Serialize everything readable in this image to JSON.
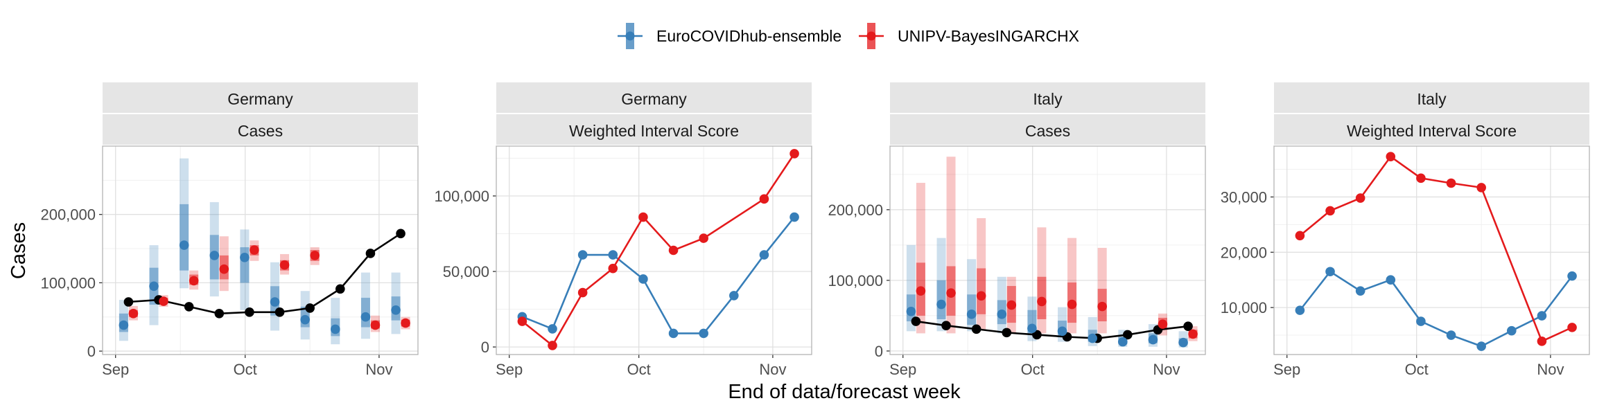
{
  "colors": {
    "ensemble": "#377eb8",
    "bayes": "#e41a1c",
    "observed": "#000000"
  },
  "legend": {
    "items": [
      {
        "label": "EuroCOVIDhub-ensemble",
        "color": "#377eb8"
      },
      {
        "label": "UNIPV-BayesINGARCHX",
        "color": "#e41a1c"
      }
    ]
  },
  "axes": {
    "xlabel": "End of data/forecast week",
    "ylabel": "Cases"
  },
  "chart_data": [
    {
      "type": "interval-forecast",
      "strip_top": "Germany",
      "strip_bottom": "Cases",
      "x_ticks": [
        {
          "label": "Sep",
          "date": "2021-09-01"
        },
        {
          "label": "Oct",
          "date": "2021-10-01"
        },
        {
          "label": "Nov",
          "date": "2021-11-01"
        }
      ],
      "y_ticks": [
        0,
        100000,
        200000
      ],
      "y_tick_labels": [
        "0",
        "100,000",
        "200,000"
      ],
      "ylim": [
        -5000,
        300000
      ],
      "xlim": [
        "2021-08-29",
        "2021-11-10"
      ],
      "observed": {
        "dates": [
          "2021-09-04",
          "2021-09-11",
          "2021-09-18",
          "2021-09-25",
          "2021-10-02",
          "2021-10-09",
          "2021-10-16",
          "2021-10-23",
          "2021-10-30",
          "2021-11-06"
        ],
        "values": [
          72000,
          75000,
          65000,
          55000,
          57000,
          57000,
          63000,
          91000,
          143000,
          172000
        ]
      },
      "series": [
        {
          "name": "EuroCOVIDhub-ensemble",
          "dates": [
            "2021-09-04",
            "2021-09-11",
            "2021-09-18",
            "2021-09-25",
            "2021-10-02",
            "2021-10-09",
            "2021-10-16",
            "2021-10-23",
            "2021-10-30",
            "2021-11-06"
          ],
          "median": [
            38000,
            95000,
            155000,
            140000,
            137000,
            72000,
            46000,
            32000,
            50000,
            60000
          ],
          "inner": [
            [
              28000,
              55000
            ],
            [
              68000,
              122000
            ],
            [
              118000,
              215000
            ],
            [
              105000,
              170000
            ],
            [
              100000,
              152000
            ],
            [
              52000,
              95000
            ],
            [
              35000,
              65000
            ],
            [
              22000,
              48000
            ],
            [
              35000,
              78000
            ],
            [
              45000,
              80000
            ]
          ],
          "outer": [
            [
              15000,
              75000
            ],
            [
              38000,
              155000
            ],
            [
              92000,
              282000
            ],
            [
              80000,
              218000
            ],
            [
              60000,
              178000
            ],
            [
              30000,
              130000
            ],
            [
              17000,
              88000
            ],
            [
              10000,
              78000
            ],
            [
              18000,
              115000
            ],
            [
              25000,
              115000
            ]
          ]
        },
        {
          "name": "UNIPV-BayesINGARCHX",
          "dates": [
            "2021-09-04",
            "2021-09-11",
            "2021-09-18",
            "2021-09-25",
            "2021-10-02",
            "2021-10-09",
            "2021-10-16",
            "2021-10-23",
            "2021-10-30",
            "2021-11-06"
          ],
          "median": [
            55000,
            73000,
            103000,
            120000,
            148000,
            126000,
            140000,
            null,
            38000,
            41000
          ],
          "inner": [
            [
              50000,
              60000
            ],
            [
              70000,
              78000
            ],
            [
              97000,
              112000
            ],
            [
              105000,
              140000
            ],
            [
              140000,
              155000
            ],
            [
              118000,
              133000
            ],
            [
              132000,
              148000
            ],
            null,
            [
              33000,
              45000
            ],
            [
              36000,
              46000
            ]
          ],
          "outer": [
            [
              45000,
              66000
            ],
            [
              65000,
              82000
            ],
            [
              90000,
              118000
            ],
            [
              88000,
              168000
            ],
            [
              132000,
              162000
            ],
            [
              112000,
              142000
            ],
            [
              126000,
              152000
            ],
            null,
            [
              28000,
              52000
            ],
            [
              32000,
              50000
            ]
          ]
        }
      ]
    },
    {
      "type": "line",
      "strip_top": "Germany",
      "strip_bottom": "Weighted Interval Score",
      "x_ticks": [
        {
          "label": "Sep",
          "date": "2021-09-01"
        },
        {
          "label": "Oct",
          "date": "2021-10-01"
        },
        {
          "label": "Nov",
          "date": "2021-11-01"
        }
      ],
      "y_ticks": [
        0,
        50000,
        100000
      ],
      "y_tick_labels": [
        "0",
        "50,000",
        "100,000"
      ],
      "ylim": [
        -5000,
        133000
      ],
      "xlim": [
        "2021-08-29",
        "2021-11-10"
      ],
      "series": [
        {
          "name": "EuroCOVIDhub-ensemble",
          "dates": [
            "2021-09-04",
            "2021-09-11",
            "2021-09-18",
            "2021-09-25",
            "2021-10-02",
            "2021-10-09",
            "2021-10-16",
            "2021-10-23",
            "2021-10-30",
            "2021-11-06"
          ],
          "values": [
            20000,
            12000,
            61000,
            61000,
            45000,
            9000,
            9000,
            34000,
            61000,
            86000
          ]
        },
        {
          "name": "UNIPV-BayesINGARCHX",
          "dates": [
            "2021-09-04",
            "2021-09-11",
            "2021-09-18",
            "2021-09-25",
            "2021-10-02",
            "2021-10-09",
            "2021-10-16",
            "2021-10-23",
            "2021-10-30",
            "2021-11-06"
          ],
          "values": [
            17000,
            1000,
            36000,
            52000,
            86000,
            64000,
            72000,
            null,
            98000,
            128000
          ]
        }
      ]
    },
    {
      "type": "interval-forecast",
      "strip_top": "Italy",
      "strip_bottom": "Cases",
      "x_ticks": [
        {
          "label": "Sep",
          "date": "2021-09-01"
        },
        {
          "label": "Oct",
          "date": "2021-10-01"
        },
        {
          "label": "Nov",
          "date": "2021-11-01"
        }
      ],
      "y_ticks": [
        0,
        100000,
        200000
      ],
      "y_tick_labels": [
        "0",
        "100,000",
        "200,000"
      ],
      "ylim": [
        -5000,
        290000
      ],
      "xlim": [
        "2021-08-29",
        "2021-11-10"
      ],
      "observed": {
        "dates": [
          "2021-09-04",
          "2021-09-11",
          "2021-09-18",
          "2021-09-25",
          "2021-10-02",
          "2021-10-09",
          "2021-10-16",
          "2021-10-23",
          "2021-10-30",
          "2021-11-06"
        ],
        "values": [
          42000,
          36000,
          31000,
          26000,
          23000,
          20000,
          18000,
          23000,
          30000,
          35000
        ]
      },
      "series": [
        {
          "name": "EuroCOVIDhub-ensemble",
          "dates": [
            "2021-09-04",
            "2021-09-11",
            "2021-09-18",
            "2021-09-25",
            "2021-10-02",
            "2021-10-09",
            "2021-10-16",
            "2021-10-23",
            "2021-10-30",
            "2021-11-06"
          ],
          "median": [
            56000,
            66000,
            52000,
            52000,
            32000,
            28000,
            18000,
            13000,
            16000,
            12000
          ],
          "inner": [
            [
              42000,
              80000
            ],
            [
              45000,
              100000
            ],
            [
              37000,
              80000
            ],
            [
              38000,
              72000
            ],
            [
              23000,
              58000
            ],
            [
              20000,
              43000
            ],
            [
              13000,
              30000
            ],
            [
              10000,
              20000
            ],
            [
              11000,
              25000
            ],
            [
              9000,
              18000
            ]
          ],
          "outer": [
            [
              28000,
              150000
            ],
            [
              28000,
              160000
            ],
            [
              28000,
              130000
            ],
            [
              25000,
              105000
            ],
            [
              14000,
              77000
            ],
            [
              13000,
              62000
            ],
            [
              7000,
              48000
            ],
            [
              6000,
              30000
            ],
            [
              6000,
              38000
            ],
            [
              5000,
              28000
            ]
          ]
        },
        {
          "name": "UNIPV-BayesINGARCHX",
          "dates": [
            "2021-09-04",
            "2021-09-11",
            "2021-09-18",
            "2021-09-25",
            "2021-10-02",
            "2021-10-09",
            "2021-10-16",
            "2021-10-23",
            "2021-10-30",
            "2021-11-06"
          ],
          "median": [
            85000,
            82000,
            78000,
            65000,
            70000,
            66000,
            63000,
            null,
            38000,
            24000
          ],
          "inner": [
            [
              50000,
              125000
            ],
            [
              50000,
              120000
            ],
            [
              52000,
              117000
            ],
            [
              40000,
              92000
            ],
            [
              45000,
              105000
            ],
            [
              40000,
              97000
            ],
            [
              42000,
              88000
            ],
            null,
            [
              30000,
              47000
            ],
            [
              18000,
              30000
            ]
          ],
          "outer": [
            [
              25000,
              238000
            ],
            [
              25000,
              275000
            ],
            [
              30000,
              188000
            ],
            [
              25000,
              105000
            ],
            [
              25000,
              175000
            ],
            [
              25000,
              160000
            ],
            [
              25000,
              146000
            ],
            null,
            [
              22000,
              53000
            ],
            [
              14000,
              35000
            ]
          ]
        }
      ]
    },
    {
      "type": "line",
      "strip_top": "Italy",
      "strip_bottom": "Weighted Interval Score",
      "x_ticks": [
        {
          "label": "Sep",
          "date": "2021-09-01"
        },
        {
          "label": "Oct",
          "date": "2021-10-01"
        },
        {
          "label": "Nov",
          "date": "2021-11-01"
        }
      ],
      "y_ticks": [
        10000,
        20000,
        30000
      ],
      "y_tick_labels": [
        "10,000",
        "20,000",
        "30,000"
      ],
      "ylim": [
        1500,
        39200
      ],
      "xlim": [
        "2021-08-29",
        "2021-11-10"
      ],
      "series": [
        {
          "name": "EuroCOVIDhub-ensemble",
          "dates": [
            "2021-09-04",
            "2021-09-11",
            "2021-09-18",
            "2021-09-25",
            "2021-10-02",
            "2021-10-09",
            "2021-10-16",
            "2021-10-23",
            "2021-10-30",
            "2021-11-06"
          ],
          "values": [
            9500,
            16500,
            13000,
            15000,
            7500,
            5000,
            3000,
            5800,
            8500,
            15700
          ]
        },
        {
          "name": "UNIPV-BayesINGARCHX",
          "dates": [
            "2021-09-04",
            "2021-09-11",
            "2021-09-18",
            "2021-09-25",
            "2021-10-02",
            "2021-10-09",
            "2021-10-16",
            "2021-10-23",
            "2021-10-30",
            "2021-11-06"
          ],
          "values": [
            23000,
            27500,
            29800,
            37300,
            33400,
            32500,
            31700,
            null,
            3900,
            6400
          ]
        }
      ]
    }
  ]
}
